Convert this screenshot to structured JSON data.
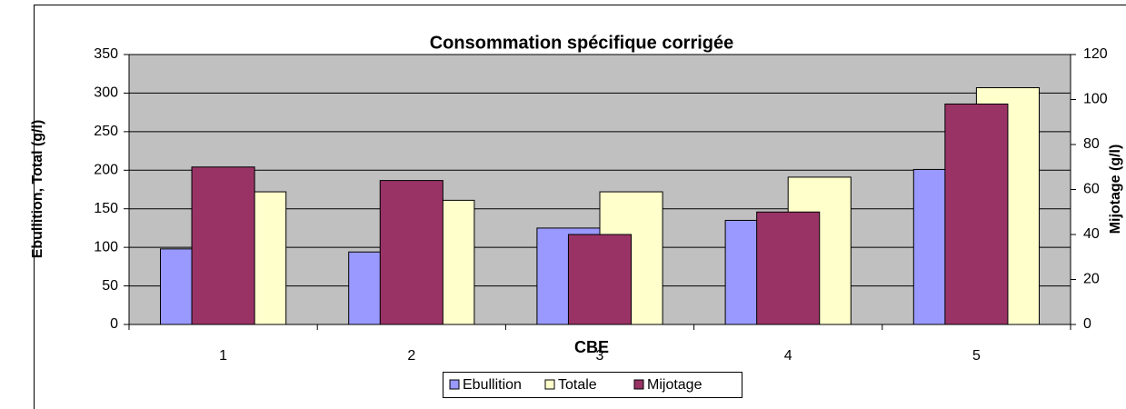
{
  "chart_data": {
    "type": "bar",
    "title": "Consommation spécifique corrigée",
    "x_label": "CBE",
    "y_label": "Ebullition, Total (g/l)",
    "y2_label": "Mijotage (g/l)",
    "categories": [
      "1",
      "2",
      "3",
      "4",
      "5"
    ],
    "series": [
      {
        "name": "Ebullition",
        "color": "#9999ff",
        "values": [
          98,
          94,
          125,
          135,
          201
        ]
      },
      {
        "name": "Totale",
        "color": "#ffffcc",
        "values": [
          172,
          161,
          172,
          191,
          307
        ]
      },
      {
        "name": "Mijotage",
        "color": "#993366",
        "axis": "y2",
        "values": [
          70,
          64,
          40,
          50,
          98
        ]
      }
    ],
    "ylim": [
      0,
      350
    ],
    "yticks": [
      0,
      50,
      100,
      150,
      200,
      250,
      300,
      350
    ],
    "y2lim": [
      0,
      120
    ],
    "y2ticks": [
      0,
      20,
      40,
      60,
      80,
      100,
      120
    ],
    "grid": true,
    "legend": "bottom"
  }
}
